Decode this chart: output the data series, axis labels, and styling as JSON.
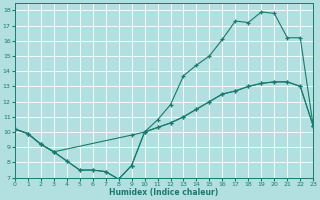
{
  "title": "",
  "xlabel": "Humidex (Indice chaleur)",
  "xlim": [
    0,
    23
  ],
  "ylim": [
    7,
    18.5
  ],
  "yticks": [
    7,
    8,
    9,
    10,
    11,
    12,
    13,
    14,
    15,
    16,
    17,
    18
  ],
  "xticks": [
    0,
    1,
    2,
    3,
    4,
    5,
    6,
    7,
    8,
    9,
    10,
    11,
    12,
    13,
    14,
    15,
    16,
    17,
    18,
    19,
    20,
    21,
    22,
    23
  ],
  "bg_color": "#b2dfdf",
  "grid_color": "#ffffff",
  "line_color": "#1a7a6e",
  "line1_x": [
    0,
    1,
    2,
    3,
    4,
    5,
    6,
    7,
    8,
    9,
    10,
    11,
    12,
    13,
    14,
    15,
    16,
    17,
    18,
    19,
    20,
    21,
    22,
    23
  ],
  "line1_y": [
    10.2,
    9.9,
    9.2,
    8.7,
    8.1,
    7.5,
    7.5,
    7.4,
    6.9,
    7.8,
    10.0,
    10.3,
    10.6,
    11.0,
    11.5,
    12.0,
    12.5,
    12.7,
    13.0,
    13.2,
    13.3,
    13.3,
    13.0,
    10.4
  ],
  "line2_x": [
    0,
    1,
    2,
    3,
    4,
    5,
    6,
    7,
    8,
    9,
    10,
    11,
    12,
    13,
    14,
    15,
    16,
    17,
    18,
    19,
    20,
    21,
    22,
    23
  ],
  "line2_y": [
    10.2,
    9.9,
    9.2,
    8.7,
    8.1,
    7.5,
    7.5,
    7.4,
    6.9,
    7.8,
    10.0,
    10.8,
    11.8,
    13.7,
    14.4,
    15.0,
    16.1,
    17.3,
    17.2,
    17.9,
    17.8,
    16.2,
    16.2,
    10.4
  ],
  "line3_x": [
    0,
    1,
    2,
    3,
    9,
    10,
    11,
    12,
    13,
    14,
    15,
    16,
    17,
    18,
    19,
    20,
    21,
    22,
    23
  ],
  "line3_y": [
    10.2,
    9.9,
    9.2,
    8.7,
    9.8,
    10.0,
    10.3,
    10.6,
    11.0,
    11.5,
    12.0,
    12.5,
    12.7,
    13.0,
    13.2,
    13.3,
    13.3,
    13.0,
    10.4
  ]
}
